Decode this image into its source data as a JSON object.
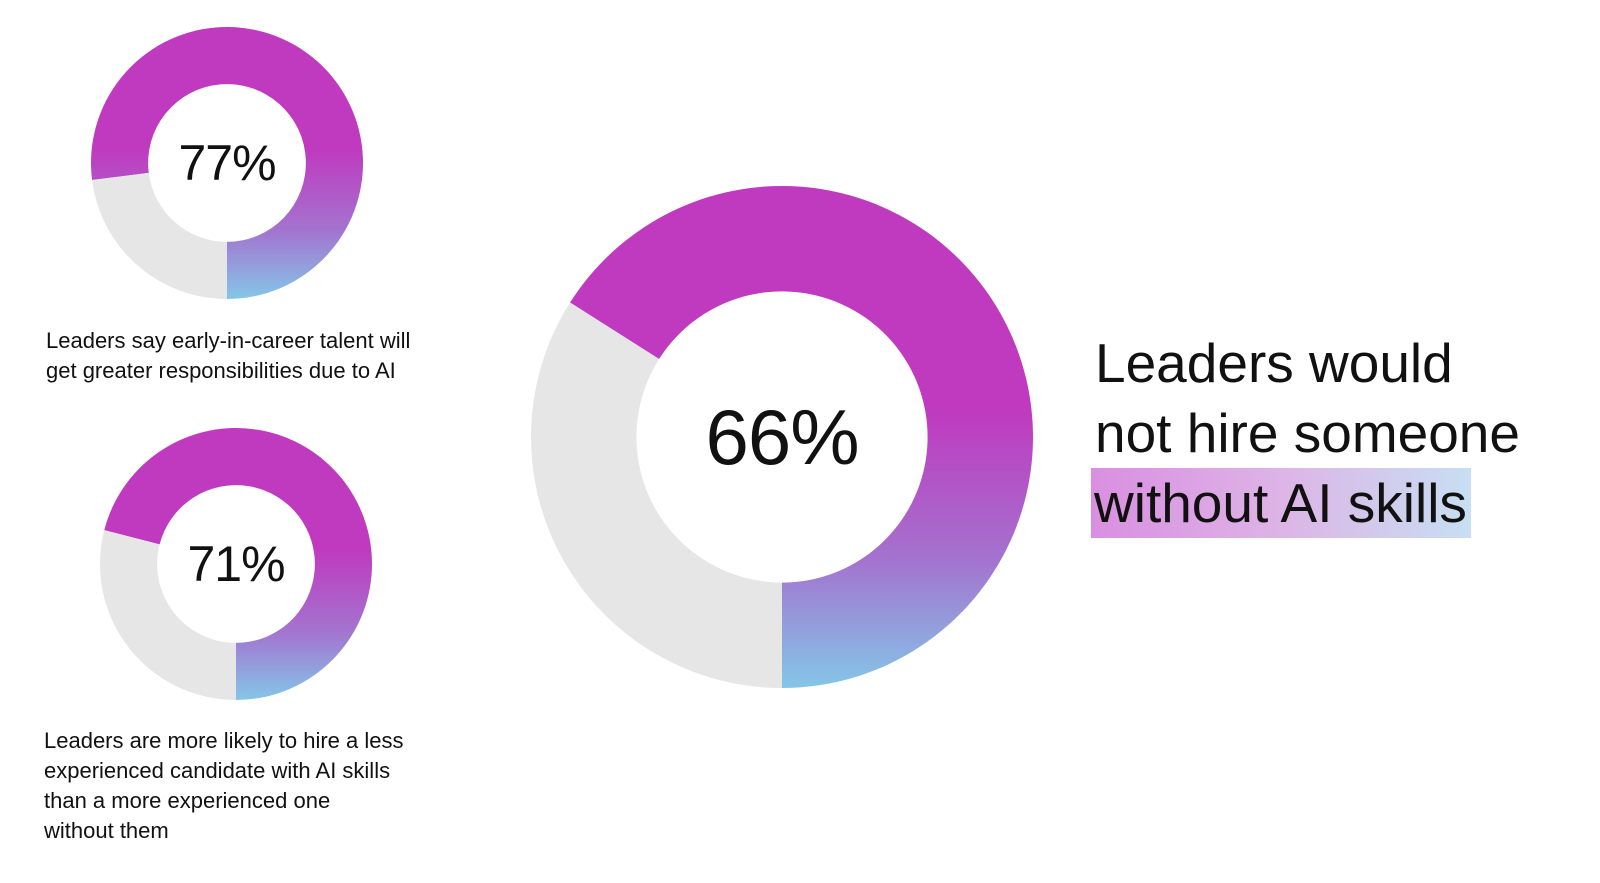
{
  "chart_data": [
    {
      "type": "pie",
      "donut": true,
      "label": "77%",
      "slices": [
        {
          "value": 77,
          "color": "gradient"
        },
        {
          "value": 23,
          "color": "#e6e6e6"
        }
      ],
      "caption_lines": [
        "Leaders say early-in-career talent will",
        "get greater responsibilities due to AI"
      ]
    },
    {
      "type": "pie",
      "donut": true,
      "label": "71%",
      "slices": [
        {
          "value": 71,
          "color": "gradient"
        },
        {
          "value": 29,
          "color": "#e6e6e6"
        }
      ],
      "caption_lines": [
        "Leaders are more likely to hire a less",
        "experienced candidate with AI skills",
        "than a more experienced one",
        "without them"
      ]
    },
    {
      "type": "pie",
      "donut": true,
      "label": "66%",
      "slices": [
        {
          "value": 66,
          "color": "gradient"
        },
        {
          "value": 34,
          "color": "#e6e6e6"
        }
      ],
      "headline_lines": [
        "Leaders would",
        "not hire someone",
        "without AI skills"
      ]
    }
  ],
  "colors": {
    "gradient_top": "#bf3abf",
    "gradient_mid": "#a374cf",
    "gradient_bottom": "#84c6e8",
    "remainder": "#e6e6e6",
    "highlight_start": "#d98fe0",
    "highlight_end": "#c7dff2"
  }
}
